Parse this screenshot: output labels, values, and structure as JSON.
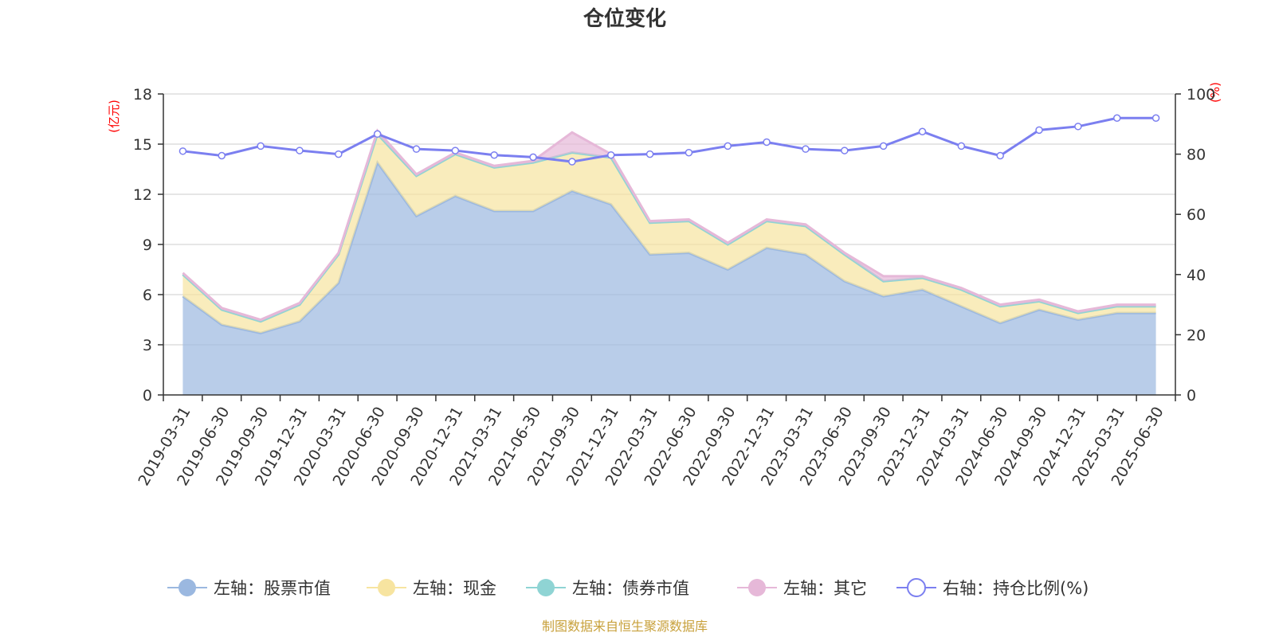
{
  "chart_data": {
    "type": "area",
    "title": "仓位变化",
    "left_axis_unit": "(亿元)",
    "right_axis_unit": "(%)",
    "left_ylim": [
      0,
      18
    ],
    "left_yticks": [
      0,
      3,
      6,
      9,
      12,
      15,
      18
    ],
    "right_ylim": [
      0,
      100
    ],
    "right_yticks": [
      0,
      20,
      40,
      60,
      80,
      100
    ],
    "grid": true,
    "legend_position": "bottom",
    "categories": [
      "2019-03-31",
      "2019-06-30",
      "2019-09-30",
      "2019-12-31",
      "2020-03-31",
      "2020-06-30",
      "2020-09-30",
      "2020-12-31",
      "2021-03-31",
      "2021-06-30",
      "2021-09-30",
      "2021-12-31",
      "2022-03-31",
      "2022-06-30",
      "2022-09-30",
      "2022-12-31",
      "2023-03-31",
      "2023-06-30",
      "2023-09-30",
      "2023-12-31",
      "2024-03-31",
      "2024-06-30",
      "2024-09-30",
      "2024-12-31",
      "2025-03-31",
      "2025-06-30"
    ],
    "series": [
      {
        "name": "左轴：股票市值",
        "axis": "left",
        "stack": true,
        "color": "#9bb8e0",
        "values": [
          5.9,
          4.2,
          3.7,
          4.4,
          6.7,
          13.9,
          10.7,
          11.9,
          11.0,
          11.0,
          12.2,
          11.4,
          8.4,
          8.5,
          7.5,
          8.8,
          8.4,
          6.8,
          5.9,
          6.3,
          5.3,
          4.3,
          5.1,
          4.5,
          4.9,
          4.9
        ]
      },
      {
        "name": "左轴：现金",
        "axis": "left",
        "stack": true,
        "color": "#f7e4a0",
        "values": [
          1.3,
          0.9,
          0.7,
          1.0,
          1.7,
          1.7,
          2.4,
          2.5,
          2.6,
          2.9,
          2.3,
          2.8,
          1.9,
          1.9,
          1.5,
          1.6,
          1.7,
          1.6,
          0.9,
          0.7,
          1.0,
          1.0,
          0.5,
          0.4,
          0.4,
          0.4
        ]
      },
      {
        "name": "左轴：债券市值",
        "axis": "left",
        "stack": true,
        "color": "#8fd4d4",
        "values": [
          0,
          0,
          0,
          0,
          0,
          0,
          0,
          0,
          0,
          0,
          0,
          0,
          0,
          0,
          0,
          0,
          0,
          0,
          0,
          0,
          0,
          0,
          0,
          0,
          0,
          0
        ]
      },
      {
        "name": "左轴：其它",
        "axis": "left",
        "stack": true,
        "color": "#e6b8d8",
        "values": [
          0.1,
          0.1,
          0.1,
          0.1,
          0.1,
          0.2,
          0.1,
          0.1,
          0.1,
          0.1,
          1.2,
          0.2,
          0.1,
          0.1,
          0.1,
          0.1,
          0.1,
          0.1,
          0.3,
          0.1,
          0.1,
          0.1,
          0.1,
          0.1,
          0.1,
          0.1
        ]
      },
      {
        "name": "右轴：持仓比例(%)",
        "axis": "right",
        "type": "line",
        "color": "#7b7ff0",
        "values": [
          81,
          79.5,
          82.7,
          81.2,
          80,
          86.7,
          81.7,
          81.2,
          79.7,
          79,
          77.5,
          79.7,
          80,
          80.5,
          82.7,
          84,
          81.7,
          81.2,
          82.7,
          87.5,
          82.7,
          79.5,
          88,
          89.2,
          92,
          92
        ]
      }
    ],
    "source_note": "制图数据来自恒生聚源数据库"
  }
}
